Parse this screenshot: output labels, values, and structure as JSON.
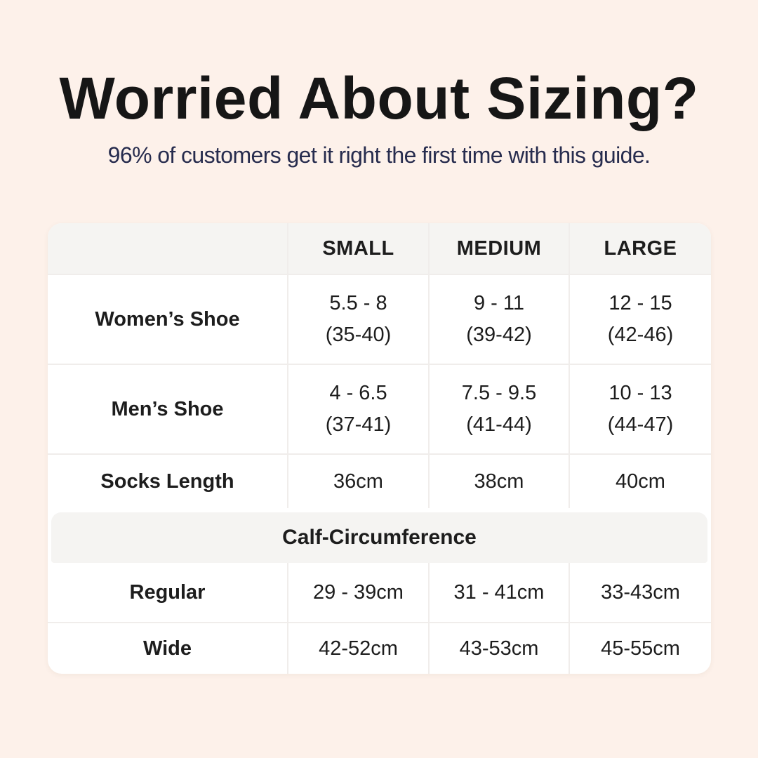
{
  "header": {
    "title": "Worried About Sizing?",
    "subtitle": "96% of customers get it right the first time with this guide."
  },
  "table": {
    "columns": {
      "small": "SMALL",
      "medium": "MEDIUM",
      "large": "LARGE"
    },
    "rows": [
      {
        "label": "Women’s Shoe",
        "cells": [
          {
            "l1": "5.5 - 8",
            "l2": "(35-40)"
          },
          {
            "l1": "9 - 11",
            "l2": "(39-42)"
          },
          {
            "l1": "12 - 15",
            "l2": "(42-46)"
          }
        ]
      },
      {
        "label": "Men’s Shoe",
        "cells": [
          {
            "l1": "4 - 6.5",
            "l2": "(37-41)"
          },
          {
            "l1": "7.5 - 9.5",
            "l2": "(41-44)"
          },
          {
            "l1": "10 - 13",
            "l2": "(44-47)"
          }
        ]
      },
      {
        "label": "Socks Length",
        "cells": [
          {
            "l1": "36cm"
          },
          {
            "l1": "38cm"
          },
          {
            "l1": "40cm"
          }
        ]
      }
    ],
    "section_header": "Calf-Circumference",
    "calf_rows": [
      {
        "label": "Regular",
        "cells": [
          {
            "l1": "29 - 39cm"
          },
          {
            "l1": "31 - 41cm"
          },
          {
            "l1": "33-43cm"
          }
        ]
      },
      {
        "label": "Wide",
        "cells": [
          {
            "l1": "42-52cm"
          },
          {
            "l1": "43-53cm"
          },
          {
            "l1": "45-55cm"
          }
        ]
      }
    ]
  },
  "colors": {
    "page_background": "#fdf1ea",
    "card_background": "#ffffff",
    "header_band": "#f5f4f2",
    "divider": "#f0edeb",
    "title_text": "#161616",
    "subtitle_text": "#272c4e",
    "table_text": "#1d1d1d"
  },
  "chart_data": {
    "type": "table",
    "title": "Worried About Sizing?",
    "subtitle": "96% of customers get it right the first time with this guide.",
    "columns": [
      "",
      "SMALL",
      "MEDIUM",
      "LARGE"
    ],
    "rows": [
      [
        "Women’s Shoe",
        "5.5 - 8 (35-40)",
        "9 - 11 (39-42)",
        "12 - 15 (42-46)"
      ],
      [
        "Men’s Shoe",
        "4 - 6.5 (37-41)",
        "7.5 - 9.5 (41-44)",
        "10 - 13 (44-47)"
      ],
      [
        "Socks Length",
        "36cm",
        "38cm",
        "40cm"
      ],
      [
        "Calf-Circumference",
        "",
        "",
        ""
      ],
      [
        "Regular",
        "29 - 39cm",
        "31 - 41cm",
        "33-43cm"
      ],
      [
        "Wide",
        "42-52cm",
        "43-53cm",
        "45-55cm"
      ]
    ],
    "layout": {
      "section_header_row_index": 3,
      "header_style": "gray band, bold uppercase",
      "grid": "light gray dividers, rounded white card on peach background"
    }
  }
}
